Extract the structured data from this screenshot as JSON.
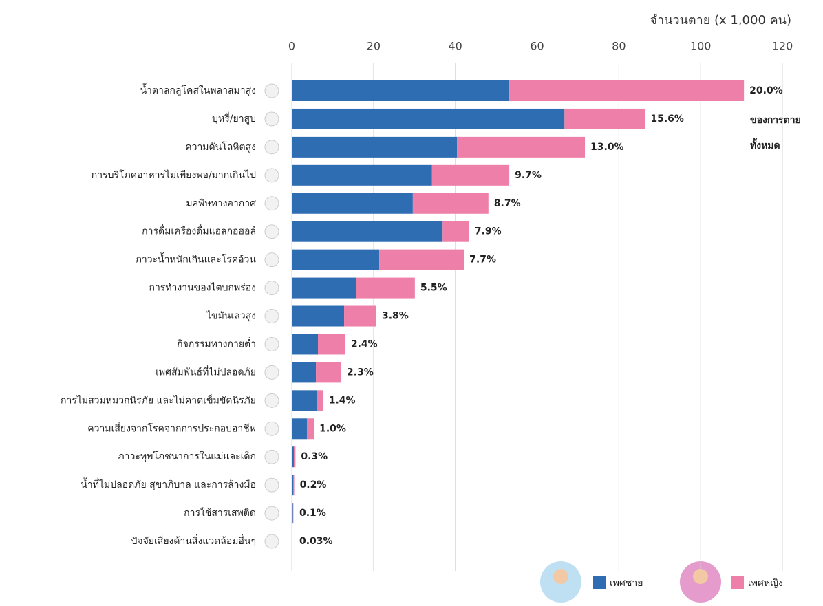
{
  "chart_data": {
    "type": "stacked-barh",
    "title": "จำนวนตาย (x 1,000 คน)",
    "categories": [
      "น้ำตาลกลูโคสในพลาสมาสูง",
      "บุหรี่/ยาสูบ",
      "ความดันโลหิตสูง",
      "การบริโภคอาหารไม่เพียงพอ/มากเกินไป",
      "มลพิษทางอากาศ",
      "การดื่มเครื่องดื่มแอลกอฮอล์",
      "ภาวะน้ำหนักเกินและโรคอ้วน",
      "การทำงานของไตบกพร่อง",
      "ไขมันเลวสูง",
      "กิจกรรมทางกายต่ำ",
      "เพศสัมพันธ์ที่ไม่ปลอดภัย",
      "การไม่สวมหมวกนิรภัย และไม่คาดเข็มขัดนิรภัย",
      "ความเสี่ยงจากโรคจากการประกอบอาชีพ",
      "ภาวะทุพโภชนาการในแม่และเด็ก",
      "น้ำที่ไม่ปลอดภัย สุขาภิบาล และการล้างมือ",
      "การใช้สารเสพติด",
      "ปัจจัยเสี่ยงด้านสิ่งแวดล้อมอื่นๆ"
    ],
    "series": [
      {
        "name": "เพศชาย",
        "color": "#2f6db3",
        "values": [
          53.2,
          66.7,
          40.4,
          34.3,
          29.6,
          36.9,
          21.4,
          15.8,
          12.8,
          6.4,
          5.9,
          6.1,
          3.7,
          0.5,
          0.4,
          0.3,
          0.05
        ]
      },
      {
        "name": "เพศหญิง",
        "color": "#ee7fa9",
        "values": [
          57.4,
          19.7,
          31.3,
          18.9,
          18.5,
          6.5,
          20.7,
          14.3,
          7.9,
          6.7,
          6.2,
          1.6,
          1.7,
          0.4,
          0.2,
          0.1,
          0.02
        ]
      }
    ],
    "share": [
      20.0,
      15.6,
      13.0,
      9.7,
      8.7,
      7.9,
      7.7,
      5.5,
      3.8,
      2.4,
      2.3,
      1.4,
      1.0,
      0.3,
      0.2,
      0.1,
      0.03
    ],
    "share_labels": [
      "20.0%",
      "15.6%",
      "13.0%",
      "9.7%",
      "8.7%",
      "7.9%",
      "7.7%",
      "5.5%",
      "3.8%",
      "2.4%",
      "2.3%",
      "1.4%",
      "1.0%",
      "0.3%",
      "0.2%",
      "0.1%",
      "0.03%"
    ],
    "annotation": [
      "ของการตาย",
      "ทั้งหมด"
    ],
    "xlim": [
      0,
      120
    ],
    "xticks": [
      0,
      20,
      40,
      60,
      80,
      100,
      120
    ],
    "grid": true
  }
}
